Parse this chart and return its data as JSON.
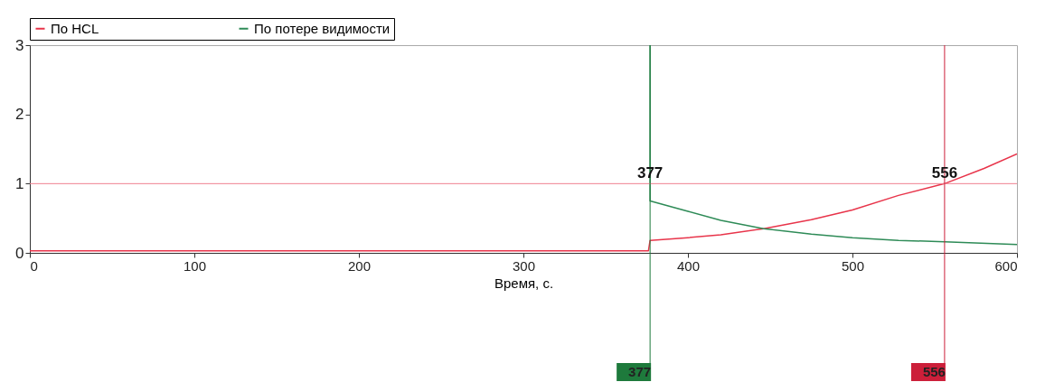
{
  "chart_data": {
    "type": "line",
    "xlabel": "Время, с.",
    "xlim": [
      0,
      600
    ],
    "xticks": [
      0,
      100,
      200,
      300,
      400,
      500,
      600
    ],
    "ylim": [
      0,
      3
    ],
    "yticks": [
      0,
      1,
      2,
      3
    ],
    "grid": false,
    "legend": "top",
    "marker": "none",
    "line_style": "solid",
    "series": [
      {
        "name": "По HCL",
        "color": "#e8344a",
        "x": [
          0,
          376,
          377,
          400,
          420,
          446,
          475,
          500,
          528,
          556,
          580,
          600
        ],
        "values": [
          0.03,
          0.03,
          0.18,
          0.22,
          0.26,
          0.35,
          0.48,
          0.62,
          0.83,
          1.0,
          1.22,
          1.43
        ]
      },
      {
        "name": "По потере видимости",
        "color": "#2e8b57",
        "x": [
          377,
          377,
          400,
          420,
          446,
          475,
          500,
          528,
          556,
          600
        ],
        "values": [
          3,
          0.75,
          0.6,
          0.47,
          0.35,
          0.27,
          0.22,
          0.18,
          0.16,
          0.12
        ]
      }
    ],
    "ref_lines": [
      {
        "axis": "y",
        "value": 1,
        "color": "#f08090"
      },
      {
        "axis": "x",
        "value": 377,
        "label": "377",
        "color": "#1e7a3c"
      },
      {
        "axis": "x",
        "value": 556,
        "label": "556",
        "color": "#cc1f3a"
      }
    ],
    "annotations": [
      {
        "text": "377",
        "x": 377,
        "y": 1
      },
      {
        "text": "556",
        "x": 556,
        "y": 1
      }
    ]
  }
}
